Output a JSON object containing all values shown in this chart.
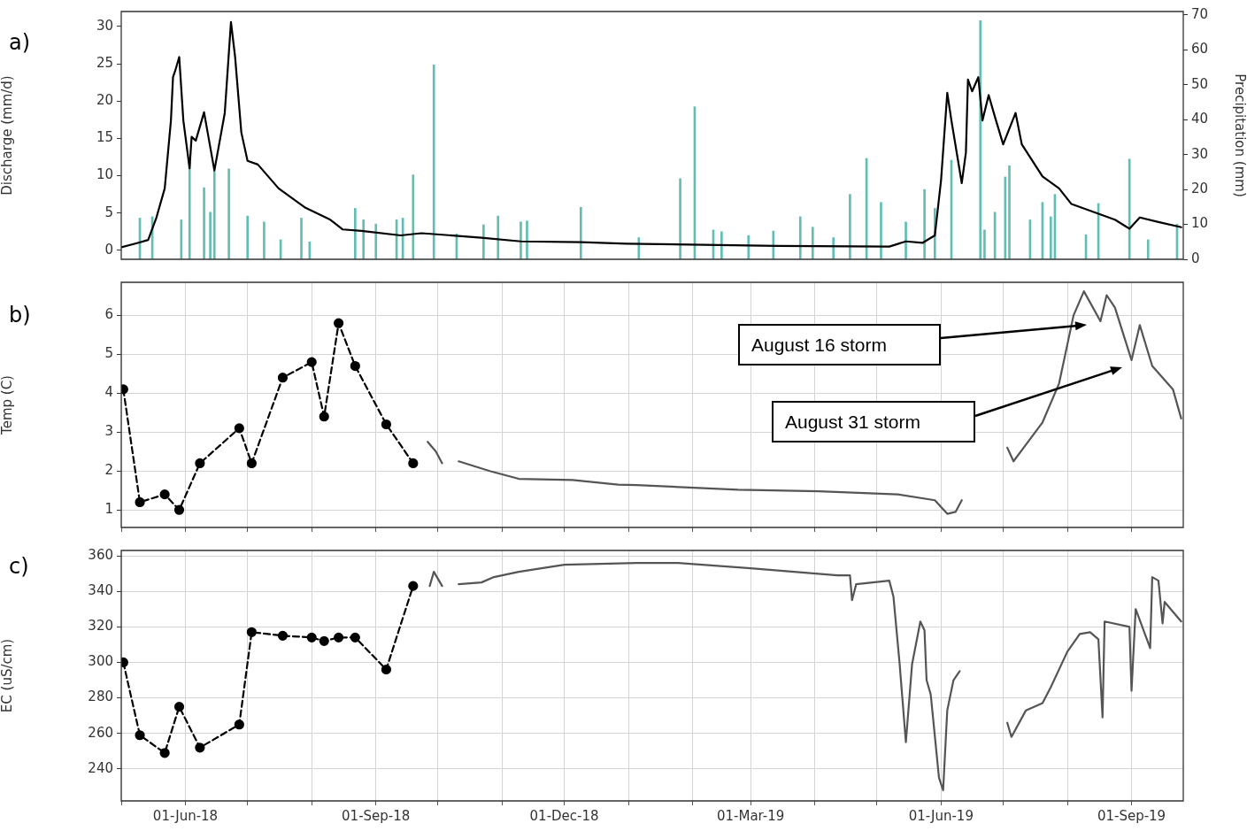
{
  "chart_data": [
    {
      "type": "line",
      "ylabel": "Discharge (mm/d)",
      "y2label": "Precipitation (mm)",
      "xlim": [
        "2018-05-01",
        "2019-09-26"
      ],
      "ylim": [
        -1.2,
        32
      ],
      "yticks": [
        0,
        5,
        10,
        15,
        20,
        25,
        30
      ],
      "y2lim": [
        0,
        71
      ],
      "y2ticks": [
        0,
        10,
        20,
        30,
        40,
        50,
        60,
        70
      ],
      "grid": false,
      "tick_labels": "y",
      "annotations": [
        "a)"
      ],
      "series": [
        {
          "type": "bar",
          "axis": "y2",
          "color": "#62bdb3",
          "x": [
            "2018-05-10",
            "2018-05-16",
            "2018-05-30",
            "2018-06-03",
            "2018-06-10",
            "2018-06-13",
            "2018-06-15",
            "2018-06-22",
            "2018-07-01",
            "2018-07-09",
            "2018-07-17",
            "2018-07-27",
            "2018-07-31",
            "2018-08-22",
            "2018-08-26",
            "2018-09-01",
            "2018-09-11",
            "2018-09-14",
            "2018-09-19",
            "2018-09-29",
            "2018-10-10",
            "2018-10-23",
            "2018-10-30",
            "2018-11-10",
            "2018-11-13",
            "2018-12-09",
            "2019-01-06",
            "2019-01-26",
            "2019-02-02",
            "2019-02-11",
            "2019-02-15",
            "2019-02-28",
            "2019-03-12",
            "2019-03-25",
            "2019-03-31",
            "2019-04-10",
            "2019-04-18",
            "2019-04-26",
            "2019-05-03",
            "2019-05-15",
            "2019-05-24",
            "2019-05-29",
            "2019-06-06",
            "2019-06-20",
            "2019-06-22",
            "2019-06-27",
            "2019-07-02",
            "2019-07-04",
            "2019-07-14",
            "2019-07-20",
            "2019-07-24",
            "2019-07-26",
            "2019-08-10",
            "2019-08-16",
            "2019-08-31",
            "2019-09-09",
            "2019-09-23"
          ],
          "values": [
            11.8,
            12.2,
            11.3,
            28,
            20.5,
            13.5,
            25.3,
            25.9,
            12.4,
            10.7,
            5.6,
            11.8,
            5,
            14.6,
            11.3,
            10.1,
            11.3,
            11.8,
            24.2,
            55.7,
            7.3,
            9.9,
            12.4,
            10.7,
            11,
            14.9,
            6.2,
            23.1,
            43.7,
            8.4,
            7.9,
            6.8,
            8.1,
            12.2,
            9.2,
            6.2,
            18.6,
            28.9,
            16.3,
            10.7,
            20,
            14.6,
            28.4,
            68.4,
            8.4,
            13.5,
            23.6,
            26.8,
            11.3,
            16.3,
            12.2,
            18.6,
            7,
            16,
            28.7,
            5.6,
            10.1
          ]
        },
        {
          "color": "#000000",
          "marker": "none",
          "line_style": "solid",
          "x": [
            "2018-05-01",
            "2018-05-09",
            "2018-05-14",
            "2018-05-18",
            "2018-05-22",
            "2018-05-25",
            "2018-05-26",
            "2018-05-27",
            "2018-05-29",
            "2018-05-31",
            "2018-06-03",
            "2018-06-04",
            "2018-06-06",
            "2018-06-10",
            "2018-06-15",
            "2018-06-20",
            "2018-06-23",
            "2018-06-25",
            "2018-06-28",
            "2018-07-01",
            "2018-07-06",
            "2018-07-16",
            "2018-07-29",
            "2018-08-10",
            "2018-08-16",
            "2018-08-25",
            "2018-09-13",
            "2018-09-23",
            "2018-10-22",
            "2018-11-10",
            "2018-12-09",
            "2018-12-31",
            "2019-03-14",
            "2019-05-07",
            "2019-05-15",
            "2019-05-23",
            "2019-05-29",
            "2019-06-01",
            "2019-06-04",
            "2019-06-06",
            "2019-06-11",
            "2019-06-13",
            "2019-06-14",
            "2019-06-16",
            "2019-06-19",
            "2019-06-21",
            "2019-06-24",
            "2019-06-27",
            "2019-07-01",
            "2019-07-07",
            "2019-07-10",
            "2019-07-20",
            "2019-07-28",
            "2019-08-03",
            "2019-08-16",
            "2019-08-24",
            "2019-08-31",
            "2019-09-05",
            "2019-09-14",
            "2019-09-25"
          ],
          "values": [
            0.4,
            1.0,
            1.4,
            4.4,
            8.3,
            17.4,
            23.2,
            24,
            25.9,
            17.4,
            11,
            15.2,
            14.7,
            18.5,
            10.7,
            18.4,
            30.6,
            25.9,
            15.8,
            12,
            11.5,
            8.3,
            5.7,
            4.1,
            2.8,
            2.6,
            2.0,
            2.3,
            1.7,
            1.2,
            1.1,
            0.9,
            0.6,
            0.5,
            1.2,
            1.0,
            2.0,
            9.4,
            21.1,
            17.4,
            9.0,
            13.1,
            22.9,
            21.3,
            23.2,
            17.4,
            20.8,
            17.9,
            14.2,
            18.4,
            14.2,
            9.9,
            8.3,
            6.2,
            4.9,
            4.1,
            2.9,
            4.4,
            3.8,
            3.1
          ]
        }
      ]
    },
    {
      "type": "line",
      "ylabel": "Temp (C)",
      "xlim": [
        "2018-05-01",
        "2019-09-26"
      ],
      "xticks": [
        {
          "value": "2018-05-01",
          "label": null
        },
        {
          "value": "2018-06-01",
          "label": null
        },
        {
          "value": "2018-07-01",
          "label": null
        },
        {
          "value": "2018-08-01",
          "label": null
        },
        {
          "value": "2018-09-01",
          "label": null
        },
        {
          "value": "2018-10-01",
          "label": null
        },
        {
          "value": "2018-11-01",
          "label": null
        },
        {
          "value": "2018-12-01",
          "label": null
        },
        {
          "value": "2019-01-01",
          "label": null
        },
        {
          "value": "2019-02-01",
          "label": null
        },
        {
          "value": "2019-03-01",
          "label": null
        },
        {
          "value": "2019-04-01",
          "label": null
        },
        {
          "value": "2019-05-01",
          "label": null
        },
        {
          "value": "2019-06-01",
          "label": null
        },
        {
          "value": "2019-07-01",
          "label": null
        },
        {
          "value": "2019-08-01",
          "label": null
        },
        {
          "value": "2019-09-01",
          "label": null
        }
      ],
      "ylim": [
        0.55,
        6.85
      ],
      "yticks": [
        1,
        2,
        3,
        4,
        5,
        6
      ],
      "grid": true,
      "tick_labels": "y",
      "annotations": [
        "b)",
        "August 16 storm",
        "August 31 storm"
      ],
      "series": [
        {
          "color": "#000000",
          "marker": "circle",
          "line_style": "dashed",
          "x": [
            "2018-05-02",
            "2018-05-10",
            "2018-05-22",
            "2018-05-29",
            "2018-06-08",
            "2018-06-27",
            "2018-07-03",
            "2018-07-18",
            "2018-08-01",
            "2018-08-07",
            "2018-08-14",
            "2018-08-22",
            "2018-09-06",
            "2018-09-19"
          ],
          "values": [
            4.1,
            1.2,
            1.4,
            1.0,
            2.2,
            3.1,
            2.2,
            4.4,
            4.8,
            3.4,
            5.8,
            4.7,
            3.2,
            2.2
          ]
        },
        {
          "color": "#555555",
          "marker": "none",
          "line_style": "solid",
          "x": [
            "2018-09-26",
            "2018-09-30",
            "2018-10-03",
            "2018-10-07",
            "2018-10-11",
            "2018-10-26",
            "2018-11-09",
            "2018-12-05",
            "2018-12-27",
            "2019-01-05",
            "2019-02-23",
            "2019-04-03",
            "2019-05-11",
            "2019-05-29",
            "2019-06-04",
            "2019-06-08",
            "2019-06-11",
            "2019-06-20",
            "2019-07-03",
            "2019-07-06",
            "2019-07-20",
            "2019-07-28",
            "2019-08-04",
            "2019-08-09",
            "2019-08-17",
            "2019-08-20",
            "2019-08-24",
            "2019-09-01",
            "2019-09-05",
            "2019-09-11",
            "2019-09-21",
            "2019-09-25"
          ],
          "values": [
            2.75,
            2.5,
            2.2,
            null,
            2.25,
            2.0,
            1.8,
            1.77,
            1.65,
            1.64,
            1.52,
            1.48,
            1.4,
            1.25,
            0.9,
            0.95,
            1.25,
            null,
            2.6,
            2.25,
            3.25,
            4.25,
            6.0,
            6.62,
            5.85,
            6.52,
            6.2,
            4.85,
            5.75,
            4.7,
            4.1,
            3.35
          ]
        }
      ]
    },
    {
      "type": "line",
      "ylabel": "EC (uS/cm)",
      "xlim": [
        "2018-05-01",
        "2019-09-26"
      ],
      "xticks": [
        {
          "value": "2018-05-01",
          "label": null
        },
        {
          "value": "2018-06-01",
          "label": "01-Jun-18"
        },
        {
          "value": "2018-07-01",
          "label": null
        },
        {
          "value": "2018-08-01",
          "label": null
        },
        {
          "value": "2018-09-01",
          "label": "01-Sep-18"
        },
        {
          "value": "2018-10-01",
          "label": null
        },
        {
          "value": "2018-11-01",
          "label": null
        },
        {
          "value": "2018-12-01",
          "label": "01-Dec-18"
        },
        {
          "value": "2019-01-01",
          "label": null
        },
        {
          "value": "2019-02-01",
          "label": null
        },
        {
          "value": "2019-03-01",
          "label": "01-Mar-19"
        },
        {
          "value": "2019-04-01",
          "label": null
        },
        {
          "value": "2019-05-01",
          "label": null
        },
        {
          "value": "2019-06-01",
          "label": "01-Jun-19"
        },
        {
          "value": "2019-07-01",
          "label": null
        },
        {
          "value": "2019-08-01",
          "label": null
        },
        {
          "value": "2019-09-01",
          "label": "01-Sep-19"
        }
      ],
      "ylim": [
        222,
        363
      ],
      "yticks": [
        240,
        260,
        280,
        300,
        320,
        340,
        360
      ],
      "grid": true,
      "annotations": [
        "c)"
      ],
      "series": [
        {
          "color": "#000000",
          "marker": "circle",
          "line_style": "dashed",
          "x": [
            "2018-05-02",
            "2018-05-10",
            "2018-05-22",
            "2018-05-29",
            "2018-06-08",
            "2018-06-27",
            "2018-07-03",
            "2018-07-18",
            "2018-08-01",
            "2018-08-07",
            "2018-08-14",
            "2018-08-22",
            "2018-09-06",
            "2018-09-19"
          ],
          "values": [
            300,
            259,
            249,
            275,
            252,
            265,
            317,
            315,
            314,
            312,
            314,
            314,
            296,
            343
          ]
        },
        {
          "color": "#555555",
          "marker": "none",
          "line_style": "solid",
          "x": [
            "2018-09-27",
            "2018-09-29",
            "2018-10-03",
            "2018-10-07",
            "2018-10-11",
            "2018-10-22",
            "2018-10-28",
            "2018-11-09",
            "2018-12-01",
            "2019-01-05",
            "2019-01-25",
            "2019-03-01",
            "2019-04-12",
            "2019-04-18",
            "2019-04-19",
            "2019-04-21",
            "2019-05-07",
            "2019-05-09",
            "2019-05-12",
            "2019-05-15",
            "2019-05-18",
            "2019-05-22",
            "2019-05-24",
            "2019-05-25",
            "2019-05-27",
            "2019-05-31",
            "2019-06-02",
            "2019-06-04",
            "2019-06-07",
            "2019-06-10",
            "2019-06-20",
            "2019-07-03",
            "2019-07-05",
            "2019-07-12",
            "2019-07-20",
            "2019-07-24",
            "2019-08-01",
            "2019-08-07",
            "2019-08-12",
            "2019-08-16",
            "2019-08-18",
            "2019-08-19",
            "2019-08-31",
            "2019-09-01",
            "2019-09-03",
            "2019-09-10",
            "2019-09-11",
            "2019-09-14",
            "2019-09-16",
            "2019-09-17",
            "2019-09-25"
          ],
          "values": [
            343,
            351,
            343,
            null,
            344,
            345,
            348,
            351,
            355,
            356,
            356,
            353,
            349,
            349,
            335,
            344,
            346,
            337,
            299,
            255,
            299,
            323,
            318,
            290,
            282,
            235,
            228,
            273,
            290,
            295,
            null,
            266,
            258,
            273,
            277,
            286,
            306,
            316,
            317,
            313,
            269,
            323,
            320,
            284,
            330,
            308,
            348,
            346,
            322,
            334,
            323
          ]
        }
      ]
    }
  ]
}
